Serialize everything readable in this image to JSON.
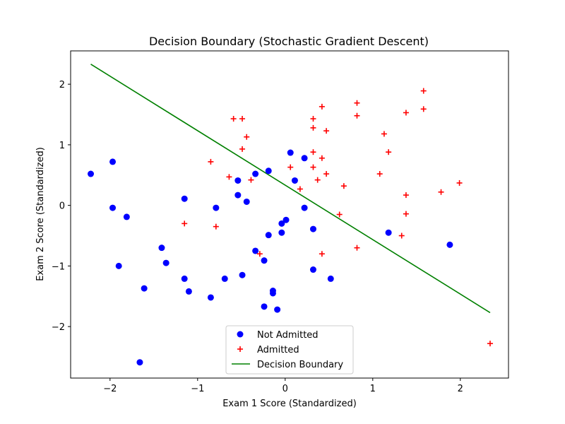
{
  "chart_data": {
    "type": "scatter",
    "title": "Decision Boundary (Stochastic Gradient Descent)",
    "xlabel": "Exam 1 Score (Standardized)",
    "ylabel": "Exam 2 Score (Standardized)",
    "xlim": [
      -2.45,
      2.55
    ],
    "ylim": [
      -2.85,
      2.55
    ],
    "xticks": [
      -2,
      -1,
      0,
      1,
      2
    ],
    "yticks": [
      -2,
      -1,
      0,
      1,
      2
    ],
    "xtick_labels": [
      "−2",
      "−1",
      "0",
      "1",
      "2"
    ],
    "ytick_labels": [
      "−2",
      "−1",
      "0",
      "1",
      "2"
    ],
    "grid": false,
    "legend_position": "bottom-center",
    "series": [
      {
        "name": "Not Admitted",
        "marker": "circle",
        "color": "#0000ff",
        "points": [
          [
            -2.22,
            0.52
          ],
          [
            -1.97,
            0.72
          ],
          [
            -1.97,
            -0.04
          ],
          [
            -1.81,
            -0.19
          ],
          [
            -1.9,
            -1.0
          ],
          [
            -1.61,
            -1.37
          ],
          [
            -1.66,
            -2.59
          ],
          [
            -1.41,
            -0.7
          ],
          [
            -1.36,
            -0.95
          ],
          [
            -1.15,
            0.11
          ],
          [
            -1.15,
            -1.21
          ],
          [
            -1.1,
            -1.42
          ],
          [
            -0.85,
            -1.52
          ],
          [
            -0.79,
            -0.04
          ],
          [
            -0.69,
            -1.21
          ],
          [
            -0.54,
            0.41
          ],
          [
            -0.54,
            0.17
          ],
          [
            -0.49,
            -1.15
          ],
          [
            -0.44,
            0.06
          ],
          [
            -0.34,
            0.52
          ],
          [
            -0.34,
            -0.75
          ],
          [
            -0.24,
            -0.91
          ],
          [
            -0.24,
            -1.67
          ],
          [
            -0.19,
            0.57
          ],
          [
            -0.19,
            -0.49
          ],
          [
            -0.14,
            -1.41
          ],
          [
            -0.14,
            -1.45
          ],
          [
            -0.09,
            -1.72
          ],
          [
            -0.04,
            -0.3
          ],
          [
            -0.04,
            -0.45
          ],
          [
            0.01,
            -0.24
          ],
          [
            0.06,
            0.87
          ],
          [
            0.11,
            0.41
          ],
          [
            0.22,
            0.78
          ],
          [
            0.22,
            -0.04
          ],
          [
            0.32,
            -0.39
          ],
          [
            0.32,
            -1.06
          ],
          [
            0.52,
            -1.21
          ],
          [
            1.18,
            -0.45
          ],
          [
            1.88,
            -0.65
          ]
        ]
      },
      {
        "name": "Admitted",
        "marker": "plus",
        "color": "#ff0000",
        "points": [
          [
            -1.15,
            -0.3
          ],
          [
            -0.85,
            0.72
          ],
          [
            -0.79,
            -0.35
          ],
          [
            -0.64,
            0.47
          ],
          [
            -0.59,
            1.43
          ],
          [
            -0.49,
            1.43
          ],
          [
            -0.49,
            0.93
          ],
          [
            -0.44,
            1.13
          ],
          [
            -0.39,
            0.42
          ],
          [
            -0.29,
            -0.8
          ],
          [
            0.06,
            0.63
          ],
          [
            0.17,
            0.27
          ],
          [
            0.32,
            1.43
          ],
          [
            0.32,
            1.28
          ],
          [
            0.32,
            0.88
          ],
          [
            0.32,
            0.63
          ],
          [
            0.37,
            0.42
          ],
          [
            0.42,
            1.63
          ],
          [
            0.42,
            0.78
          ],
          [
            0.42,
            -0.8
          ],
          [
            0.47,
            1.23
          ],
          [
            0.47,
            0.52
          ],
          [
            0.62,
            -0.15
          ],
          [
            0.67,
            0.32
          ],
          [
            0.82,
            1.69
          ],
          [
            0.82,
            1.48
          ],
          [
            0.82,
            -0.7
          ],
          [
            1.08,
            0.52
          ],
          [
            1.13,
            1.18
          ],
          [
            1.18,
            0.88
          ],
          [
            1.33,
            -0.5
          ],
          [
            1.38,
            1.53
          ],
          [
            1.38,
            0.17
          ],
          [
            1.38,
            -0.14
          ],
          [
            1.58,
            1.89
          ],
          [
            1.58,
            1.59
          ],
          [
            1.78,
            0.22
          ],
          [
            1.99,
            0.37
          ],
          [
            2.34,
            -2.28
          ]
        ]
      },
      {
        "name": "Decision Boundary",
        "marker": "line",
        "color": "#008000",
        "points": [
          [
            -2.22,
            2.33
          ],
          [
            2.34,
            -1.77
          ]
        ]
      }
    ]
  }
}
